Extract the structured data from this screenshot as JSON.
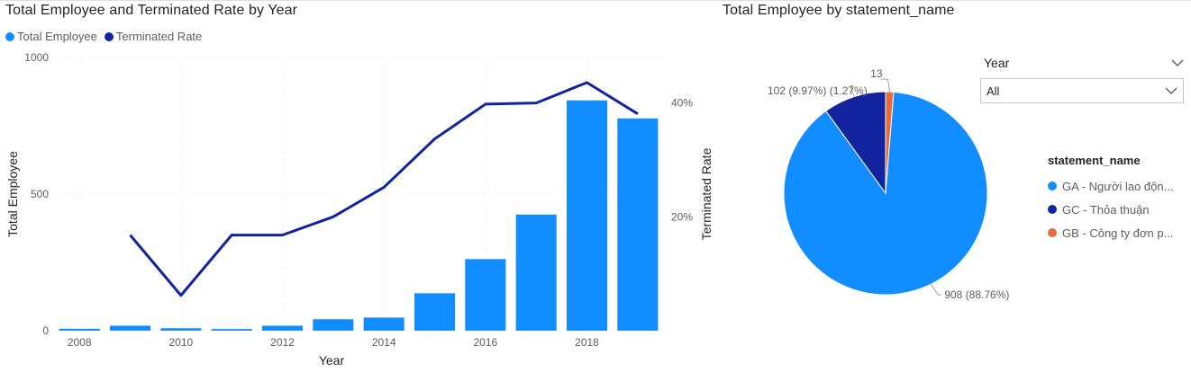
{
  "combo_chart": {
    "title": "Total Employee and Terminated Rate by Year",
    "legend": [
      {
        "label": "Total Employee",
        "color": "#118DFF"
      },
      {
        "label": "Terminated Rate",
        "color": "#12239E"
      }
    ]
  },
  "pie_chart": {
    "title": "Total Employee by statement_name",
    "legend_title": "statement_name",
    "legend": [
      {
        "label": "GA - Người lao độn...",
        "color": "#118DFF"
      },
      {
        "label": "GC - Thỏa thuận",
        "color": "#12239E"
      },
      {
        "label": "GB - Công ty đơn p...",
        "color": "#E66C37"
      }
    ]
  },
  "slicer": {
    "title": "Year",
    "value": "All"
  },
  "chart_data": [
    {
      "type": "bar",
      "title": "Total Employee and Terminated Rate by Year",
      "xlabel": "Year",
      "ylabel": "Total Employee",
      "y2label": "Terminated Rate",
      "categories": [
        2008,
        2009,
        2010,
        2011,
        2012,
        2013,
        2014,
        2015,
        2016,
        2017,
        2018,
        2019
      ],
      "x_ticks": [
        "2008",
        "2010",
        "2012",
        "2014",
        "2016",
        "2018"
      ],
      "ylim": [
        0,
        1000
      ],
      "y_ticks": [
        "0",
        "500",
        "1000"
      ],
      "y2lim": [
        0,
        0.48
      ],
      "y2_ticks": [
        "20%",
        "40%"
      ],
      "series": [
        {
          "name": "Total Employee",
          "type": "bar",
          "color": "#118DFF",
          "values": [
            7,
            18,
            9,
            6,
            18,
            42,
            48,
            137,
            262,
            425,
            843,
            777
          ]
        },
        {
          "name": "Terminated Rate",
          "type": "line",
          "color": "#12239E",
          "values": [
            null,
            0.168,
            0.062,
            0.168,
            0.168,
            0.2,
            0.252,
            0.337,
            0.398,
            0.4,
            0.436,
            0.381
          ]
        }
      ]
    },
    {
      "type": "pie",
      "title": "Total Employee by statement_name",
      "slices": [
        {
          "label": "GA - Người lao độn...",
          "value": 908,
          "color": "#118DFF",
          "data_label": "908 (88.76%)"
        },
        {
          "label": "GC - Thỏa thuận",
          "value": 102,
          "color": "#12239E",
          "data_label": "102 (9.97%)"
        },
        {
          "label": "GB - Công ty đơn p...",
          "value": 13,
          "color": "#E66C37",
          "data_label": "13 (1.27%)"
        }
      ],
      "label_13": "13",
      "label_102_combo": "102 (9.97%) (1.27%)"
    }
  ]
}
